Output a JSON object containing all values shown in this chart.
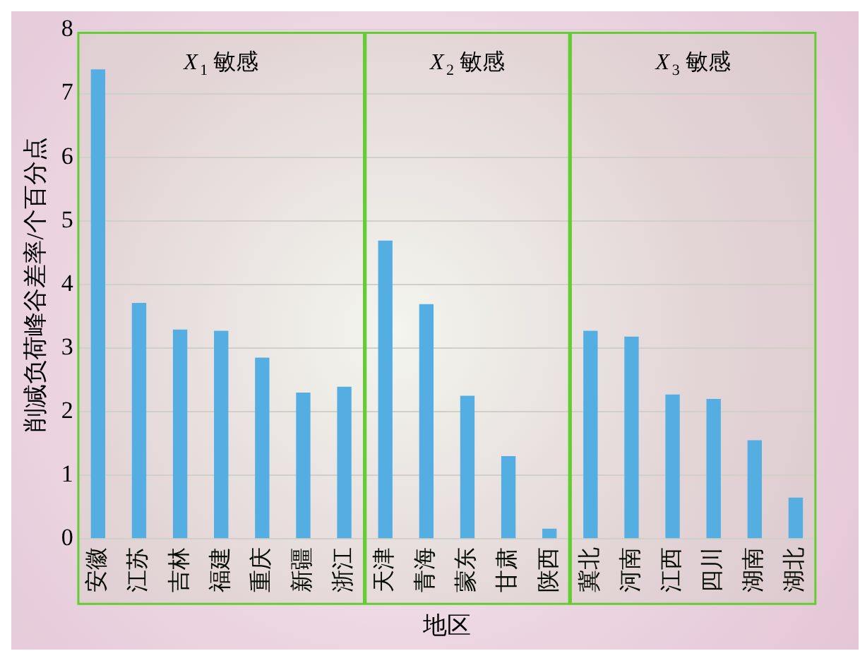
{
  "chart_data": {
    "type": "bar",
    "xlabel": "地区",
    "ylabel": "削减负荷峰谷差率/个百分点",
    "categories": [
      "安徽",
      "江苏",
      "吉林",
      "福建",
      "重庆",
      "新疆",
      "浙江",
      "天津",
      "青海",
      "蒙东",
      "甘肃",
      "陕西",
      "冀北",
      "河南",
      "江西",
      "四川",
      "湖南",
      "湖北"
    ],
    "values": [
      7.38,
      3.71,
      3.29,
      3.27,
      2.85,
      2.3,
      2.39,
      4.69,
      3.69,
      2.25,
      1.3,
      0.16,
      3.27,
      3.18,
      2.27,
      2.2,
      1.55,
      0.65
    ],
    "color": "#55acee",
    "ylim": [
      0,
      8
    ],
    "yticks": [
      0,
      1,
      2,
      3,
      4,
      5,
      6,
      7,
      8
    ],
    "grid": "y",
    "legend": false,
    "bands": [
      {
        "axis": "x",
        "from": "安徽",
        "to": "浙江",
        "label": "X$_{1}$ 敏感",
        "color": "#66cc33"
      },
      {
        "axis": "x",
        "from": "天津",
        "to": "陕西",
        "label": "X$_{2}$ 敏感",
        "color": "#66cc33"
      },
      {
        "axis": "x",
        "from": "冀北",
        "to": "湖北",
        "label": "X$_{3}$ 敏感",
        "color": "#66cc33"
      }
    ]
  }
}
